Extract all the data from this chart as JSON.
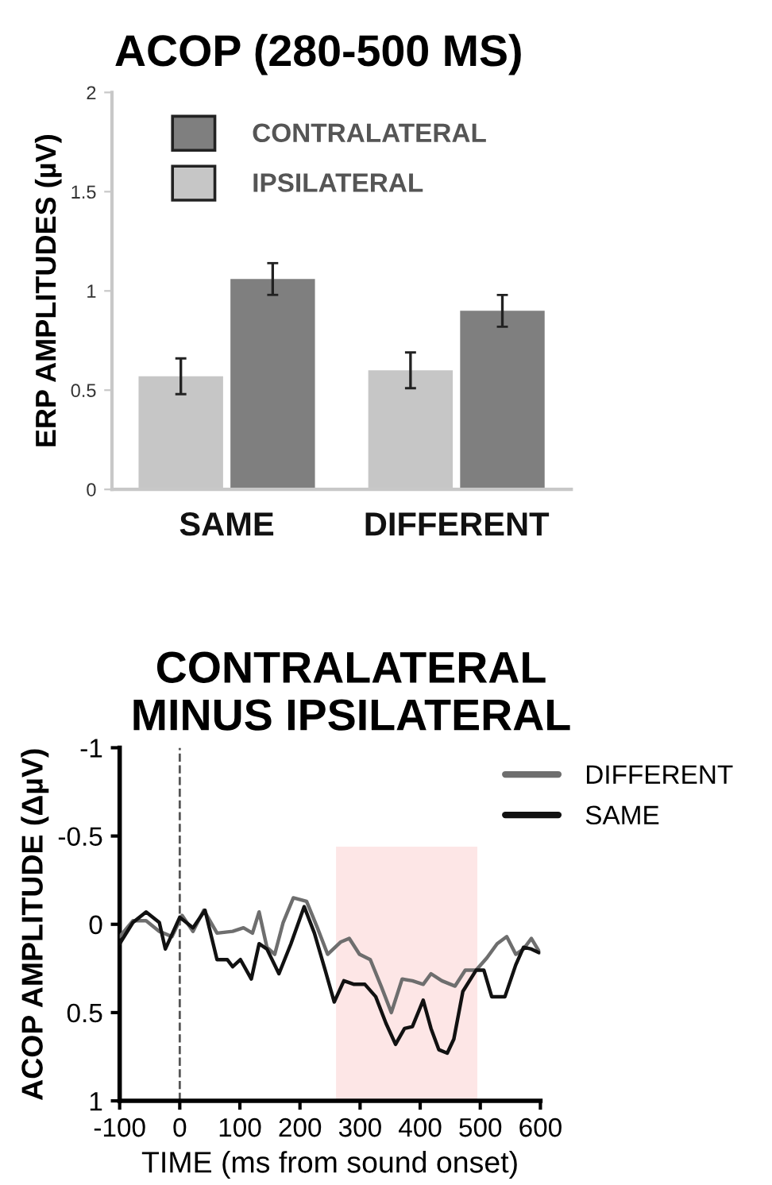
{
  "chart_data": [
    {
      "type": "bar",
      "title": "ACOP (280-500 MS)",
      "ylabel": "ERP AMPLITUDES (µV)",
      "categories": [
        "SAME",
        "DIFFERENT"
      ],
      "series": [
        {
          "name": "IPSILATERAL",
          "color": "#c6c6c6",
          "values": [
            0.57,
            0.6
          ],
          "errors": [
            0.09,
            0.09
          ]
        },
        {
          "name": "CONTRALATERAL",
          "color": "#7f7f7f",
          "values": [
            1.06,
            0.9
          ],
          "errors": [
            0.08,
            0.08
          ]
        }
      ],
      "ylim": [
        0,
        2
      ],
      "yticks": [
        0,
        0.5,
        1,
        1.5,
        2
      ],
      "grid": false,
      "legend": "top left"
    },
    {
      "type": "line",
      "title": "CONTRALATERAL\nMINUS IPSILATERAL",
      "xlabel": "TIME (ms from sound onset)",
      "ylabel": "ACOP AMPLITUDE (ΔµV)",
      "series": [
        {
          "name": "DIFFERENT",
          "color": "#6e6e6e",
          "x": [
            -100,
            -78,
            -56,
            -34,
            -13,
            4,
            22,
            40,
            62,
            88,
            106,
            121,
            132,
            145,
            158,
            172,
            189,
            211,
            229,
            246,
            268,
            282,
            299,
            317,
            335,
            352,
            370,
            387,
            405,
            418,
            436,
            458,
            475,
            493,
            511,
            528,
            544,
            559,
            572,
            585,
            599
          ],
          "values": [
            0.07,
            -0.02,
            -0.02,
            0.04,
            0.07,
            -0.05,
            0.04,
            -0.08,
            0.05,
            0.04,
            0.02,
            0.05,
            -0.07,
            0.13,
            0.17,
            -0.01,
            -0.15,
            -0.13,
            0.02,
            0.17,
            0.1,
            0.08,
            0.17,
            0.2,
            0.35,
            0.5,
            0.31,
            0.32,
            0.34,
            0.28,
            0.32,
            0.35,
            0.26,
            0.26,
            0.19,
            0.11,
            0.07,
            0.17,
            0.14,
            0.08,
            0.16
          ]
        },
        {
          "name": "SAME",
          "color": "#111111",
          "x": [
            -100,
            -78,
            -56,
            -34,
            -24,
            0,
            22,
            42,
            62,
            79,
            88,
            101,
            119,
            132,
            145,
            165,
            185,
            207,
            224,
            242,
            257,
            273,
            290,
            308,
            326,
            343,
            359,
            374,
            387,
            405,
            418,
            431,
            445,
            456,
            471,
            493,
            506,
            519,
            541,
            559,
            572,
            585,
            597
          ],
          "values": [
            0.11,
            -0.01,
            -0.07,
            -0.01,
            0.14,
            -0.04,
            0.02,
            -0.08,
            0.2,
            0.2,
            0.24,
            0.2,
            0.31,
            0.11,
            0.14,
            0.28,
            0.11,
            -0.1,
            0.05,
            0.26,
            0.44,
            0.32,
            0.34,
            0.34,
            0.41,
            0.56,
            0.68,
            0.59,
            0.58,
            0.43,
            0.59,
            0.71,
            0.73,
            0.65,
            0.38,
            0.26,
            0.26,
            0.41,
            0.41,
            0.23,
            0.13,
            0.14,
            0.16
          ]
        }
      ],
      "xlim": [
        -100,
        600
      ],
      "xticks": [
        -100,
        0,
        100,
        200,
        300,
        400,
        500,
        600
      ],
      "ylim": [
        1,
        -1
      ],
      "yticks": [
        -1,
        -0.5,
        0,
        0.5,
        1
      ],
      "ref_lines": [
        {
          "axis": "x",
          "value": 0,
          "color": "#555555",
          "line_style": "dashed"
        }
      ],
      "bands": [
        {
          "axis": "x",
          "from": 260,
          "to": 495,
          "color": "#fde6e6"
        }
      ],
      "grid": false,
      "legend": "top right",
      "line_style": "solid",
      "marker": "none"
    }
  ]
}
